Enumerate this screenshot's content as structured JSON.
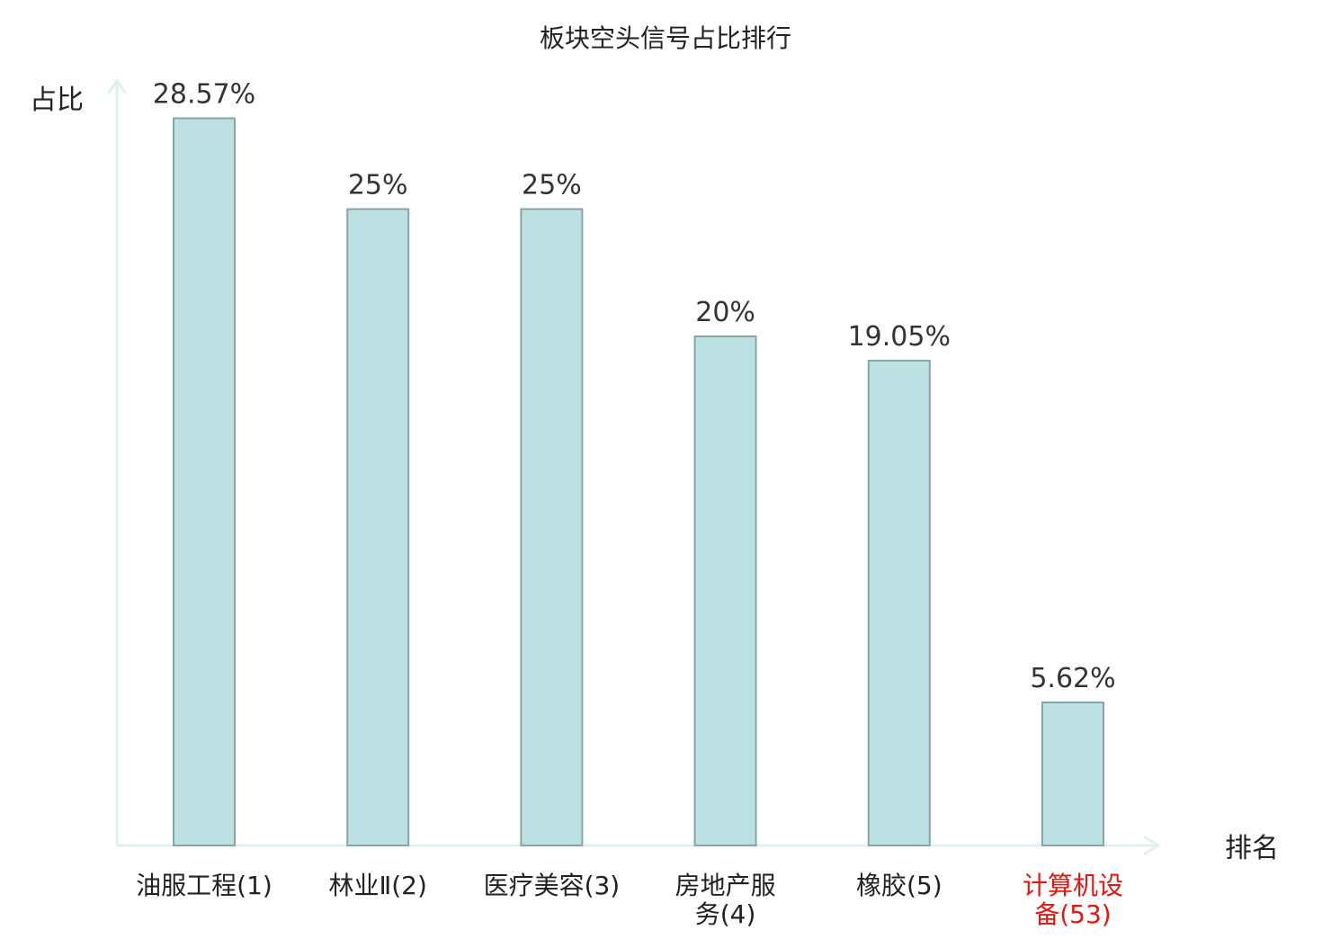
{
  "chart_data": {
    "type": "bar",
    "title": "板块空头信号占比排行",
    "ylabel": "占比",
    "xlabel": "排名",
    "categories": [
      [
        "油服工程(1)"
      ],
      [
        "林业Ⅱ(2)"
      ],
      [
        "医疗美容(3)"
      ],
      [
        "房地产服",
        "务(4)"
      ],
      [
        "橡胶(5)"
      ],
      [
        "计算机设",
        "备(53)"
      ]
    ],
    "values": [
      28.57,
      25,
      25,
      20,
      19.05,
      5.62
    ],
    "value_labels": [
      "28.57%",
      "25%",
      "25%",
      "20%",
      "19.05%",
      "5.62%"
    ],
    "highlight_index": 5,
    "ylim": [
      0,
      30
    ],
    "grid": false,
    "legend": "none",
    "colors": {
      "bar_fill": "#bde0e2",
      "bar_stroke": "#86a6a8",
      "axis": "#dff2ef",
      "text": "#333333",
      "highlight": "#e8140f"
    }
  }
}
